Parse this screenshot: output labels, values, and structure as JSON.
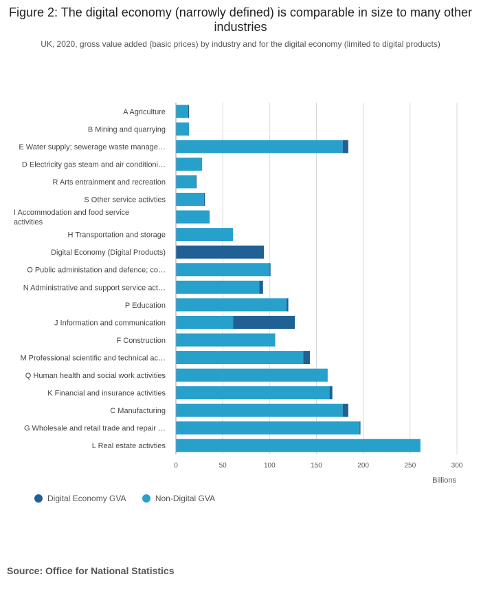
{
  "title": "Figure 2: The digital economy (narrowly defined) is comparable in size to many other industries",
  "subtitle": "UK, 2020, gross value added (basic prices) by industry and for the digital economy (limited to digital products)",
  "source": "Source: Office for National Statistics",
  "colors": {
    "digital": "#206095",
    "non_digital": "#27a0cc",
    "grid": "#d9d9d9",
    "axis": "#999999"
  },
  "chart_data": {
    "type": "bar",
    "orientation": "horizontal",
    "stacked": true,
    "categories": [
      [
        "A Agriculture"
      ],
      [
        "B Mining and quarrying"
      ],
      [
        "E Water supply; sewerage waste manage…"
      ],
      [
        "D Electricity gas steam and air conditioni…"
      ],
      [
        "R Arts entrainment and recreation"
      ],
      [
        "S Other service activties"
      ],
      [
        "I Accommodation and food service",
        "activities"
      ],
      [
        "H Transportation and storage"
      ],
      [
        "Digital Economy (Digital Products)"
      ],
      [
        "O Public administation and defence; co…"
      ],
      [
        "N Administrative and support service act…"
      ],
      [
        "P Education"
      ],
      [
        "J Information and communication"
      ],
      [
        "F Construction"
      ],
      [
        "M Professional scientific and technical ac…"
      ],
      [
        "Q Human health and social work activities"
      ],
      [
        "K Financial and insurance activities"
      ],
      [
        "C Manufacturing"
      ],
      [
        "G Wholesale and retail trade and repair …"
      ],
      [
        "L Real estate activties"
      ]
    ],
    "series": [
      {
        "name": "Non-Digital GVA",
        "color": "#27a0cc",
        "values": [
          13,
          14,
          178,
          28,
          21,
          30,
          36,
          61,
          0,
          100,
          89,
          118,
          61,
          106,
          136,
          162,
          164,
          178,
          196,
          261
        ]
      },
      {
        "name": "Digital Economy GVA",
        "color": "#206095",
        "values": [
          1,
          0,
          6,
          0,
          1,
          1,
          0,
          0,
          94,
          1,
          4,
          2,
          66,
          0,
          7,
          0,
          3,
          6,
          1,
          0
        ]
      }
    ],
    "xlim": [
      0,
      300
    ],
    "xticks": [
      "0",
      "50",
      "100",
      "150",
      "200",
      "250",
      "300"
    ],
    "xlabel": "Billions",
    "grid": true,
    "legend": "bottom-left"
  }
}
